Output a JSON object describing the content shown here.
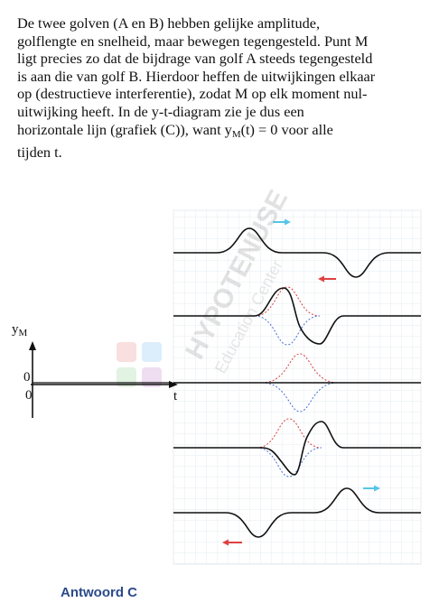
{
  "text": {
    "line1": "De twee golven (A en B) hebben gelijke amplitude,",
    "line2": "golflengte en snelheid, maar bewegen tegengesteld. Punt M",
    "line3": "ligt precies zo dat de bijdrage van golf A steeds tegengesteld",
    "line4": "is aan die van golf B. Hierdoor heffen de uitwijkingen elkaar",
    "line5": "op (destructieve interferentie), zodat M op elk moment nul-",
    "line6": "uitwijking heeft. In de y-t-diagram zie je dus een",
    "line7_pre": "horizontale lijn (grafiek (C)), want y",
    "line7_sub": "M",
    "line7_post": "(t) = 0 voor alle",
    "line8": "tijden t."
  },
  "diagram": {
    "y_axis_label": "y",
    "y_axis_sub": "M",
    "t_axis_label": "t",
    "zero_upper": "0",
    "zero_lower": "0"
  },
  "watermark": {
    "line1": "HYPOTENUSE",
    "line2": "Education Center"
  },
  "answer": "Antwoord C",
  "colors": {
    "arrow_right": "#55c5e8",
    "arrow_left": "#e04040",
    "dotted_a": "#d94040",
    "dotted_b": "#4a6fd4",
    "grid": "#dde6ec",
    "answer": "#2b4a8b"
  }
}
